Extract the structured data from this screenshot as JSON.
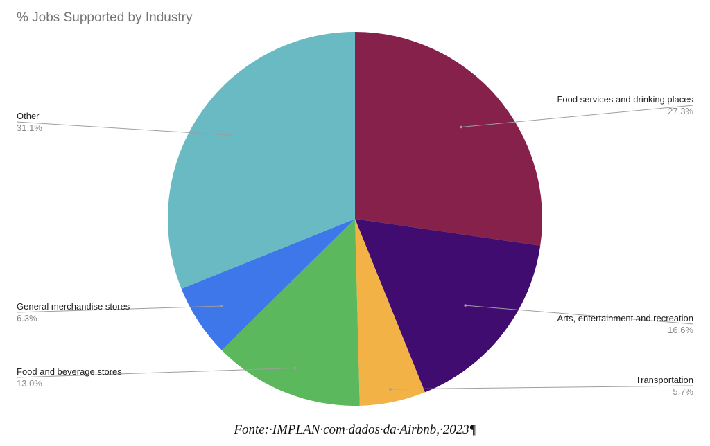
{
  "chart_data": {
    "type": "pie",
    "title": "% Jobs Supported by Industry",
    "slices": [
      {
        "label": "Food services and drinking places",
        "value": 27.3,
        "value_label": "27.3%",
        "color": "#85214a"
      },
      {
        "label": "Arts, entertainment and recreation",
        "value": 16.6,
        "value_label": "16.6%",
        "color": "#410c70"
      },
      {
        "label": "Transportation",
        "value": 5.7,
        "value_label": "5.7%",
        "color": "#f2b245"
      },
      {
        "label": "Food and beverage stores",
        "value": 13.0,
        "value_label": "13.0%",
        "color": "#5cb85c"
      },
      {
        "label": "General merchandise stores",
        "value": 6.3,
        "value_label": "6.3%",
        "color": "#3e77e9"
      },
      {
        "label": "Other",
        "value": 31.1,
        "value_label": "31.1%",
        "color": "#69bac3"
      }
    ],
    "start_angle": "12 o'clock",
    "direction": "clockwise",
    "legend": "none"
  },
  "caption": "Fonte:·IMPLAN·com·dados·da·Airbnb,·2023¶"
}
